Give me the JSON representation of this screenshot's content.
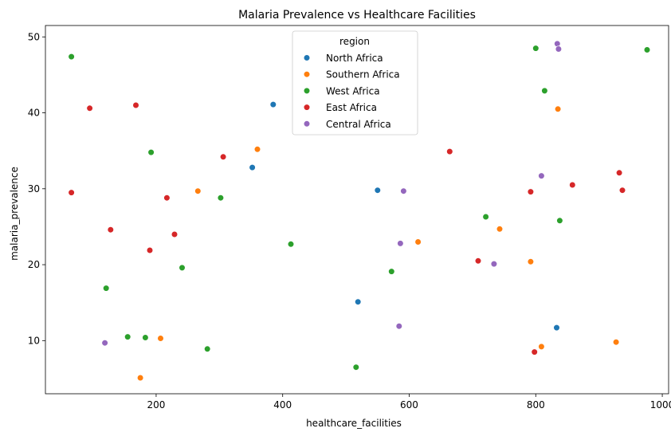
{
  "chart_data": {
    "type": "scatter",
    "title": "Malaria Prevalence vs Healthcare Facilities",
    "xlabel": "healthcare_facilities",
    "ylabel": "malaria_prevalence",
    "xlim": [
      25,
      1010
    ],
    "ylim": [
      3,
      51.5
    ],
    "xticks": [
      200,
      400,
      600,
      800,
      1000
    ],
    "yticks": [
      10,
      20,
      30,
      40,
      50
    ],
    "grid": false,
    "legend": {
      "title": "region",
      "placement": "top-center"
    },
    "series": [
      {
        "name": "North Africa",
        "color": "#1f77b4",
        "points": [
          [
            385,
            41.1
          ],
          [
            352,
            32.8
          ],
          [
            550,
            29.8
          ],
          [
            519,
            15.1
          ],
          [
            833,
            11.7
          ]
        ]
      },
      {
        "name": "Southern Africa",
        "color": "#ff7f0e",
        "points": [
          [
            360,
            35.2
          ],
          [
            835,
            40.5
          ],
          [
            266,
            29.7
          ],
          [
            743,
            24.7
          ],
          [
            614,
            23.0
          ],
          [
            792,
            20.4
          ],
          [
            207,
            10.3
          ],
          [
            809,
            9.2
          ],
          [
            927,
            9.8
          ],
          [
            175,
            5.1
          ]
        ]
      },
      {
        "name": "West Africa",
        "color": "#2ca02c",
        "points": [
          [
            66,
            47.4
          ],
          [
            800,
            48.5
          ],
          [
            976,
            48.3
          ],
          [
            814,
            42.9
          ],
          [
            192,
            34.8
          ],
          [
            302,
            28.8
          ],
          [
            721,
            26.3
          ],
          [
            838,
            25.8
          ],
          [
            413,
            22.7
          ],
          [
            241,
            19.6
          ],
          [
            572,
            19.1
          ],
          [
            121,
            16.9
          ],
          [
            155,
            10.5
          ],
          [
            183,
            10.4
          ],
          [
            281,
            8.9
          ],
          [
            516,
            6.5
          ]
        ]
      },
      {
        "name": "East Africa",
        "color": "#d62728",
        "points": [
          [
            95,
            40.6
          ],
          [
            168,
            41.0
          ],
          [
            306,
            34.2
          ],
          [
            664,
            34.9
          ],
          [
            66,
            29.5
          ],
          [
            217,
            28.8
          ],
          [
            932,
            32.1
          ],
          [
            858,
            30.5
          ],
          [
            937,
            29.8
          ],
          [
            792,
            29.6
          ],
          [
            128,
            24.6
          ],
          [
            229,
            24.0
          ],
          [
            190,
            21.9
          ],
          [
            709,
            20.5
          ],
          [
            798,
            8.5
          ]
        ]
      },
      {
        "name": "Central Africa",
        "color": "#9467bd",
        "points": [
          [
            834,
            49.1
          ],
          [
            836,
            48.4
          ],
          [
            809,
            31.7
          ],
          [
            591,
            29.7
          ],
          [
            586,
            22.8
          ],
          [
            734,
            20.1
          ],
          [
            584,
            11.9
          ],
          [
            119,
            9.7
          ]
        ]
      }
    ]
  }
}
